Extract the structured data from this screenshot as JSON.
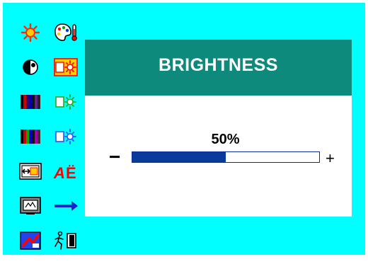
{
  "menu": {
    "icons": [
      {
        "name": "brightness-sun-icon"
      },
      {
        "name": "color-temperature-icon"
      },
      {
        "name": "contrast-icon"
      },
      {
        "name": "brightness-box-highlight-icon"
      },
      {
        "name": "color-bars-red-icon"
      },
      {
        "name": "brightness-green-icon"
      },
      {
        "name": "color-bars-multi-icon"
      },
      {
        "name": "brightness-blue-icon"
      },
      {
        "name": "horizontal-size-icon"
      },
      {
        "name": "language-icon"
      },
      {
        "name": "screen-position-icon"
      },
      {
        "name": "next-arrow-icon"
      },
      {
        "name": "auto-adjust-icon"
      },
      {
        "name": "exit-icon"
      }
    ]
  },
  "panel": {
    "title": "BRIGHTNESS",
    "value_text": "50%",
    "value": 0.5,
    "minus": "−",
    "plus": "+"
  },
  "colors": {
    "background": "#00ffff",
    "header": "#0e8a7c",
    "slider_fill": "#0a3a9a"
  }
}
